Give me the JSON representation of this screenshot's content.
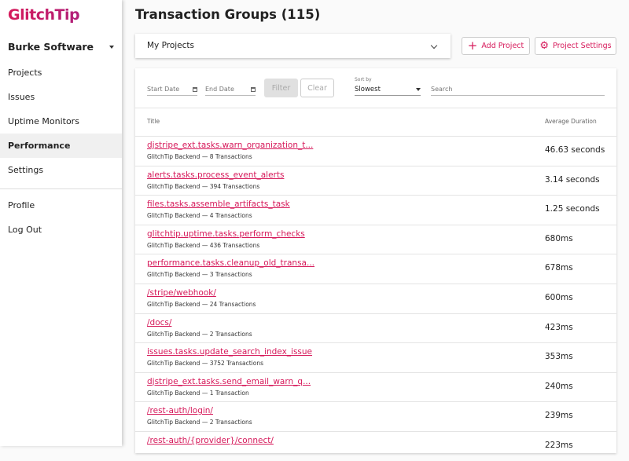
{
  "brand": "GlitchTip",
  "sidebar": {
    "org": "Burke Software",
    "items": [
      {
        "label": "Projects"
      },
      {
        "label": "Issues"
      },
      {
        "label": "Uptime Monitors"
      },
      {
        "label": "Performance",
        "active": true
      },
      {
        "label": "Settings"
      }
    ],
    "bottom": [
      {
        "label": "Profile"
      },
      {
        "label": "Log Out"
      }
    ]
  },
  "page": {
    "title": "Transaction Groups (115)",
    "project_select": "My Projects",
    "add_project": "Add Project",
    "project_settings": "Project Settings"
  },
  "filters": {
    "start_date": "Start Date",
    "end_date": "End Date",
    "filter": "Filter",
    "clear": "Clear",
    "sort_label": "Sort by",
    "sort_value": "Slowest",
    "search_placeholder": "Search"
  },
  "table": {
    "columns": [
      "Title",
      "Average Duration"
    ],
    "rows": [
      {
        "title": "djstripe_ext.tasks.warn_organization_t...",
        "sub": "GlitchTip Backend — 8 Transactions",
        "duration": "46.63 seconds"
      },
      {
        "title": "alerts.tasks.process_event_alerts",
        "sub": "GlitchTip Backend — 394 Transactions",
        "duration": "3.14 seconds"
      },
      {
        "title": "files.tasks.assemble_artifacts_task",
        "sub": "GlitchTip Backend — 4 Transactions",
        "duration": "1.25 seconds"
      },
      {
        "title": "glitchtip.uptime.tasks.perform_checks",
        "sub": "GlitchTip Backend — 436 Transactions",
        "duration": "680ms"
      },
      {
        "title": "performance.tasks.cleanup_old_transa...",
        "sub": "GlitchTip Backend — 3 Transactions",
        "duration": "678ms"
      },
      {
        "title": "/stripe/webhook/",
        "sub": "GlitchTip Backend — 24 Transactions",
        "duration": "600ms"
      },
      {
        "title": "/docs/",
        "sub": "GlitchTip Backend — 2 Transactions",
        "duration": "423ms"
      },
      {
        "title": "issues.tasks.update_search_index_issue",
        "sub": "GlitchTip Backend — 3752 Transactions",
        "duration": "353ms"
      },
      {
        "title": "djstripe_ext.tasks.send_email_warn_q...",
        "sub": "GlitchTip Backend — 1 Transaction",
        "duration": "240ms"
      },
      {
        "title": "/rest-auth/login/",
        "sub": "GlitchTip Backend — 2 Transactions",
        "duration": "239ms"
      },
      {
        "title": "/rest-auth/{provider}/connect/",
        "sub": "",
        "duration": "223ms"
      }
    ]
  },
  "colors": {
    "accent": "#d6195a"
  }
}
